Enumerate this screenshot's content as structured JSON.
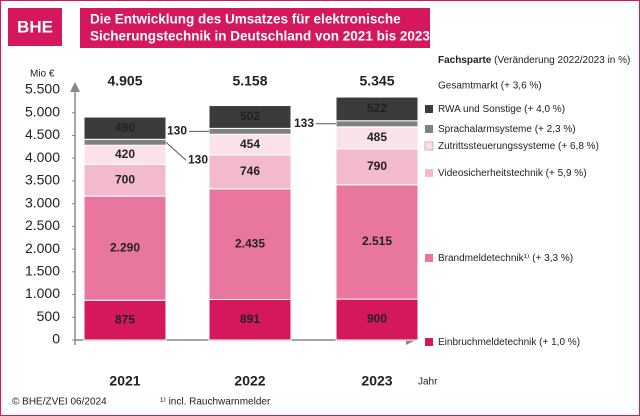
{
  "logo": "BHE",
  "chart_data": {
    "type": "bar",
    "stacked": true,
    "title": [
      "Die Entwicklung des Umsatzes für elektronische",
      "Sicherungstechnik in Deutschland von 2021 bis 2023"
    ],
    "y_label": "Mio €",
    "x_label": "Jahr",
    "categories": [
      "2021",
      "2022",
      "2023"
    ],
    "series": [
      {
        "name": "Einbruchmeldetechnik",
        "change": "(+ 1,0 %)",
        "color": "#d5175e",
        "values": [
          875,
          891,
          900
        ]
      },
      {
        "name": "Brandmeldetechnik¹⁾",
        "change": "(+ 3,3 %)",
        "color": "#e9769f",
        "values": [
          2290,
          2435,
          2515
        ],
        "value_labels": [
          "2.290",
          "2.435",
          "2.515"
        ]
      },
      {
        "name": "Videosicherheitstechnik",
        "change": "(+ 5,9 %)",
        "color": "#f3b9cd",
        "values": [
          700,
          746,
          790
        ]
      },
      {
        "name": "Zutrittssteuerungssysteme",
        "change": "(+ 6,8 %)",
        "color": "#fbe2ea",
        "values": [
          420,
          454,
          485
        ]
      },
      {
        "name": "Sprachalarmsysteme",
        "change": "(+ 2,3 %)",
        "color": "#808080",
        "values": [
          130,
          130,
          133
        ]
      },
      {
        "name": "RWA und Sonstige",
        "change": "(+ 4,0 %)",
        "color": "#3b3b3b",
        "values": [
          490,
          502,
          522
        ]
      }
    ],
    "totals": {
      "values": [
        4905,
        5158,
        5345
      ],
      "value_labels": [
        "4.905",
        "5.158",
        "5.345"
      ]
    },
    "legend_title": "Fachsparte",
    "legend_subtitle": "(Veränderung 2022/2023 in %)",
    "market": "Gesamtmarkt (+ 3,6 %)",
    "ylim": [
      0,
      5500
    ],
    "yticks": [
      0,
      500,
      {
        "value": 1000,
        "label": "1.000"
      },
      {
        "value": 1500,
        "label": "1.500"
      },
      {
        "value": 2000,
        "label": "2.000"
      },
      {
        "value": 2500,
        "label": "2.500"
      },
      {
        "value": 3000,
        "label": "3.000"
      },
      {
        "value": 3500,
        "label": "3.500"
      },
      {
        "value": 4000,
        "label": "4.000"
      },
      {
        "value": 4500,
        "label": "4.500"
      },
      {
        "value": 5000,
        "label": "5.000"
      },
      {
        "value": 5500,
        "label": "5.500"
      }
    ],
    "grid": false,
    "source": "© BHE/ZVEI 06/2024",
    "footnote": "¹⁾ incl. Rauchwarnmelder"
  }
}
